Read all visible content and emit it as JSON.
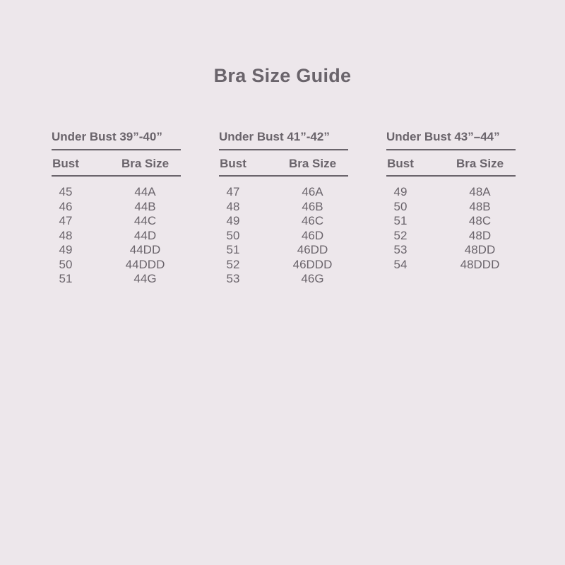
{
  "page": {
    "title": "Bra Size Guide",
    "colors": {
      "background": "#EDE7EB",
      "text": "#6A646B"
    }
  },
  "tables": [
    {
      "heading": "Under Bust 39”-40”",
      "columns": {
        "bust": "Bust",
        "bra_size": "Bra Size"
      },
      "rows": [
        {
          "bust": "45",
          "bra_size": "44A"
        },
        {
          "bust": "46",
          "bra_size": "44B"
        },
        {
          "bust": "47",
          "bra_size": "44C"
        },
        {
          "bust": "48",
          "bra_size": "44D"
        },
        {
          "bust": "49",
          "bra_size": "44DD"
        },
        {
          "bust": "50",
          "bra_size": "44DDD"
        },
        {
          "bust": "51",
          "bra_size": "44G"
        }
      ]
    },
    {
      "heading": "Under Bust 41”-42”",
      "columns": {
        "bust": "Bust",
        "bra_size": "Bra Size"
      },
      "rows": [
        {
          "bust": "47",
          "bra_size": "46A"
        },
        {
          "bust": "48",
          "bra_size": "46B"
        },
        {
          "bust": "49",
          "bra_size": "46C"
        },
        {
          "bust": "50",
          "bra_size": "46D"
        },
        {
          "bust": "51",
          "bra_size": "46DD"
        },
        {
          "bust": "52",
          "bra_size": "46DDD"
        },
        {
          "bust": "53",
          "bra_size": "46G"
        }
      ]
    },
    {
      "heading": "Under Bust 43”–44”",
      "columns": {
        "bust": "Bust",
        "bra_size": "Bra Size"
      },
      "rows": [
        {
          "bust": "49",
          "bra_size": "48A"
        },
        {
          "bust": "50",
          "bra_size": "48B"
        },
        {
          "bust": "51",
          "bra_size": "48C"
        },
        {
          "bust": "52",
          "bra_size": "48D"
        },
        {
          "bust": "53",
          "bra_size": "48DD"
        },
        {
          "bust": "54",
          "bra_size": "48DDD"
        }
      ]
    }
  ]
}
